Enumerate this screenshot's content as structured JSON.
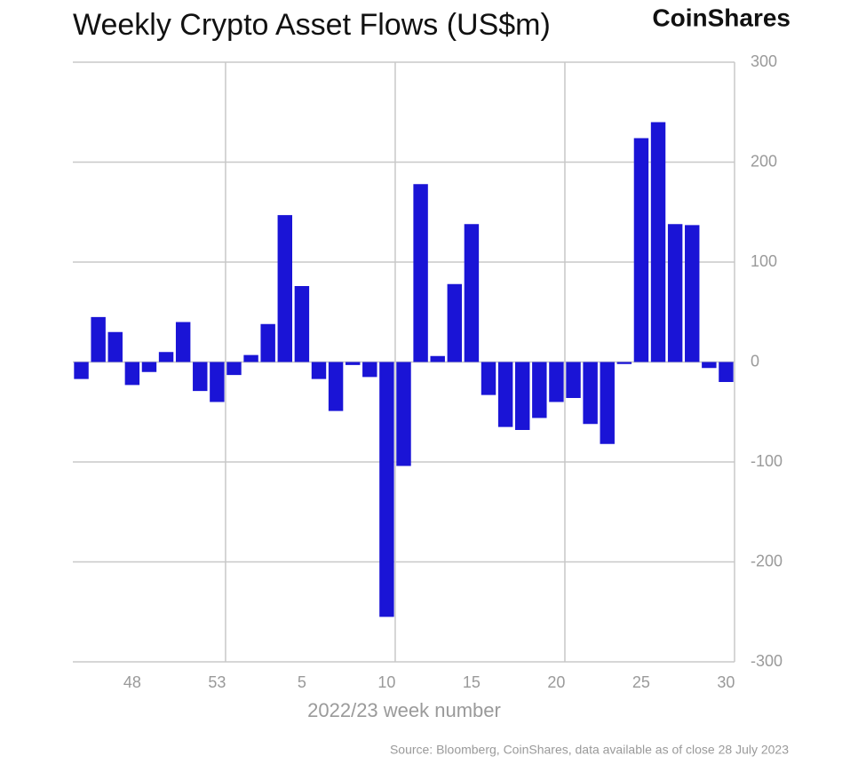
{
  "brand": "CoinShares",
  "source": "Source: Bloomberg, CoinShares, data available as of close 28 July 2023",
  "chart_data": {
    "type": "bar",
    "title": "Weekly Crypto Asset Flows (US$m)",
    "x_label": "2022/23 week number",
    "categories": [
      null,
      null,
      null,
      "48",
      null,
      null,
      null,
      null,
      "53",
      null,
      null,
      null,
      null,
      "5",
      null,
      null,
      null,
      null,
      "10",
      null,
      null,
      null,
      null,
      "15",
      null,
      null,
      null,
      null,
      "20",
      null,
      null,
      null,
      null,
      "25",
      null,
      null,
      null,
      null,
      "30"
    ],
    "values": [
      -17,
      45,
      30,
      -23,
      -10,
      10,
      40,
      -29,
      -40,
      -13,
      7,
      38,
      147,
      76,
      -17,
      -49,
      -3,
      -15,
      -255,
      -104,
      178,
      6,
      78,
      138,
      -33,
      -65,
      -68,
      -56,
      -40,
      -36,
      -62,
      -82,
      -2,
      224,
      240,
      138,
      137,
      -6,
      -20
    ],
    "color": "#1a14d6",
    "ylim": [
      -300,
      300
    ],
    "yticks": [
      -300,
      -200,
      -100,
      0,
      100,
      200,
      300
    ],
    "grid": true
  }
}
